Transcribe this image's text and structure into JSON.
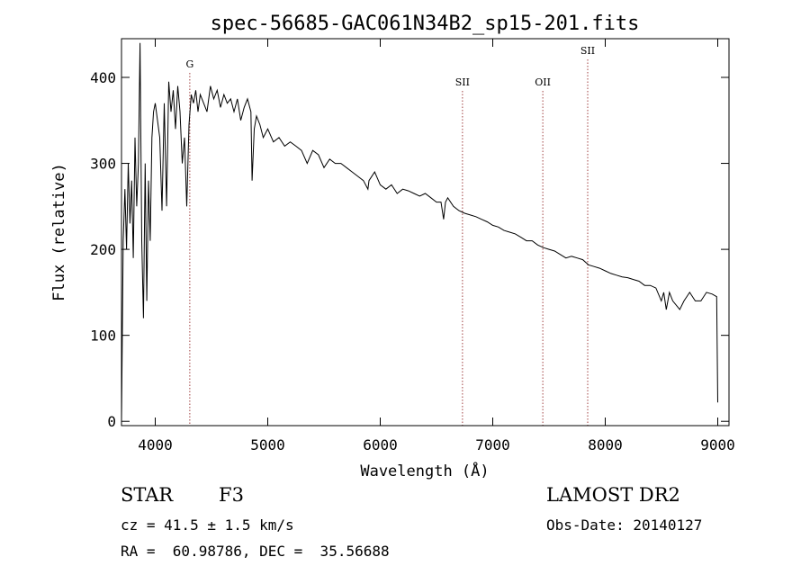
{
  "chart_data": {
    "type": "line",
    "title": "spec-56685-GAC061N34B2_sp15-201.fits",
    "xlabel": "Wavelength (Å)",
    "ylabel": "Flux (relative)",
    "xlim": [
      3700,
      9100
    ],
    "ylim": [
      -5,
      445
    ],
    "x_ticks": [
      4000,
      5000,
      6000,
      7000,
      8000,
      9000
    ],
    "y_ticks": [
      0,
      100,
      200,
      300,
      400
    ],
    "series": [
      {
        "x": [
          3700,
          3715,
          3730,
          3745,
          3760,
          3775,
          3790,
          3805,
          3820,
          3835,
          3850,
          3865,
          3880,
          3895,
          3910,
          3925,
          3940,
          3955,
          3970,
          3985,
          4000,
          4020,
          4040,
          4060,
          4080,
          4101,
          4120,
          4140,
          4160,
          4180,
          4200,
          4220,
          4240,
          4260,
          4280,
          4300,
          4320,
          4340,
          4360,
          4380,
          4400,
          4430,
          4460,
          4490,
          4520,
          4550,
          4580,
          4610,
          4640,
          4670,
          4700,
          4730,
          4760,
          4790,
          4820,
          4850,
          4861,
          4880,
          4900,
          4930,
          4960,
          5000,
          5050,
          5100,
          5150,
          5200,
          5250,
          5300,
          5350,
          5400,
          5450,
          5500,
          5550,
          5600,
          5650,
          5700,
          5750,
          5800,
          5850,
          5890,
          5900,
          5950,
          6000,
          6050,
          6100,
          6150,
          6200,
          6250,
          6300,
          6350,
          6400,
          6450,
          6500,
          6540,
          6563,
          6580,
          6600,
          6650,
          6700,
          6750,
          6800,
          6850,
          6900,
          6950,
          7000,
          7050,
          7100,
          7150,
          7200,
          7250,
          7300,
          7350,
          7400,
          7450,
          7500,
          7550,
          7600,
          7650,
          7700,
          7750,
          7800,
          7850,
          7900,
          7950,
          8000,
          8050,
          8100,
          8150,
          8200,
          8250,
          8300,
          8350,
          8400,
          8450,
          8498,
          8520,
          8542,
          8570,
          8600,
          8662,
          8700,
          8750,
          8800,
          8850,
          8900,
          8950,
          8990,
          9000
        ],
        "y": [
          0,
          210,
          270,
          200,
          300,
          230,
          280,
          190,
          330,
          250,
          300,
          440,
          210,
          120,
          300,
          140,
          280,
          210,
          330,
          360,
          370,
          350,
          330,
          245,
          370,
          250,
          395,
          360,
          385,
          340,
          390,
          360,
          300,
          330,
          250,
          345,
          380,
          370,
          385,
          360,
          380,
          370,
          360,
          390,
          375,
          385,
          365,
          380,
          370,
          375,
          360,
          375,
          350,
          365,
          375,
          360,
          280,
          340,
          355,
          345,
          330,
          340,
          325,
          330,
          320,
          325,
          320,
          315,
          300,
          315,
          310,
          295,
          305,
          300,
          300,
          295,
          290,
          285,
          280,
          270,
          280,
          290,
          275,
          270,
          275,
          265,
          270,
          268,
          265,
          262,
          265,
          260,
          255,
          255,
          235,
          255,
          260,
          250,
          245,
          242,
          240,
          238,
          235,
          232,
          228,
          226,
          222,
          220,
          218,
          214,
          210,
          210,
          205,
          202,
          200,
          198,
          194,
          190,
          192,
          190,
          188,
          182,
          180,
          178,
          175,
          172,
          170,
          168,
          167,
          165,
          163,
          158,
          158,
          155,
          140,
          150,
          130,
          150,
          140,
          130,
          140,
          150,
          140,
          140,
          150,
          148,
          145,
          22
        ]
      }
    ],
    "annotations": [
      {
        "label": "G",
        "x": 4307
      },
      {
        "label": "SII",
        "x": 6731
      },
      {
        "label": "OII",
        "x": 7445
      },
      {
        "label": "SII",
        "x": 7844
      }
    ],
    "line_color": "#000000",
    "marker_color": "#a04040"
  },
  "info": {
    "object_class": "STAR",
    "subclass": "F3",
    "survey": "LAMOST DR2",
    "cz": "cz = 41.5 ± 1.5 km/s",
    "obs_date": "Obs-Date: 20140127",
    "radec": "RA =  60.98786, DEC =  35.56688"
  }
}
